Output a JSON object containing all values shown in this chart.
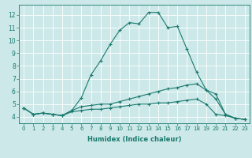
{
  "xlabel": "Humidex (Indice chaleur)",
  "background_color": "#cce8e8",
  "grid_color": "#ffffff",
  "line_color": "#1a7a6e",
  "xlim": [
    -0.5,
    23.5
  ],
  "ylim": [
    3.5,
    12.8
  ],
  "xticks": [
    0,
    1,
    2,
    3,
    4,
    5,
    6,
    7,
    8,
    9,
    10,
    11,
    12,
    13,
    14,
    15,
    16,
    17,
    18,
    19,
    20,
    21,
    22,
    23
  ],
  "yticks": [
    4,
    5,
    6,
    7,
    8,
    9,
    10,
    11,
    12
  ],
  "line1_x": [
    0,
    1,
    2,
    3,
    4,
    5,
    6,
    7,
    8,
    9,
    10,
    11,
    12,
    13,
    14,
    15,
    16,
    17,
    18,
    19,
    20,
    21,
    22,
    23
  ],
  "line1_y": [
    4.7,
    4.2,
    4.3,
    4.2,
    4.1,
    4.5,
    5.5,
    7.3,
    8.4,
    9.7,
    10.8,
    11.4,
    11.3,
    12.2,
    12.2,
    11.0,
    11.1,
    9.3,
    7.5,
    6.1,
    5.4,
    4.2,
    3.9,
    3.8
  ],
  "line2_x": [
    0,
    1,
    2,
    3,
    4,
    5,
    6,
    7,
    8,
    9,
    10,
    11,
    12,
    13,
    14,
    15,
    16,
    17,
    18,
    19,
    20,
    21,
    22,
    23
  ],
  "line2_y": [
    4.7,
    4.2,
    4.3,
    4.2,
    4.1,
    4.5,
    4.8,
    4.9,
    5.0,
    5.0,
    5.2,
    5.4,
    5.6,
    5.8,
    6.0,
    6.2,
    6.3,
    6.5,
    6.6,
    6.1,
    5.8,
    4.2,
    3.9,
    3.8
  ],
  "line3_x": [
    0,
    1,
    2,
    3,
    4,
    5,
    6,
    7,
    8,
    9,
    10,
    11,
    12,
    13,
    14,
    15,
    16,
    17,
    18,
    19,
    20,
    21,
    22,
    23
  ],
  "line3_y": [
    4.7,
    4.2,
    4.3,
    4.2,
    4.1,
    4.4,
    4.5,
    4.6,
    4.6,
    4.7,
    4.8,
    4.9,
    5.0,
    5.0,
    5.1,
    5.1,
    5.2,
    5.3,
    5.4,
    5.0,
    4.2,
    4.1,
    3.9,
    3.8
  ],
  "xticklabel_fontsize": 5.0,
  "yticklabel_fontsize": 5.5,
  "xlabel_fontsize": 6.0
}
